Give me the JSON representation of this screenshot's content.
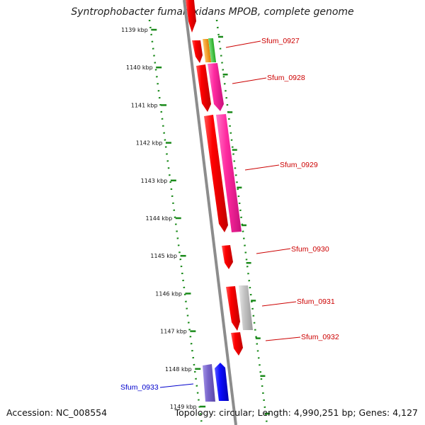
{
  "title": "Syntrophobacter fumaroxidans MPOB, complete genome",
  "footer": {
    "accession": "Accession: NC_008554",
    "summary": "Topology: circular; Length: 4,990,251 bp; Genes: 4,127"
  },
  "ruler": {
    "ticks": [
      "1139 kbp",
      "1140 kbp",
      "1141 kbp",
      "1142 kbp",
      "1143 kbp",
      "1144 kbp",
      "1145 kbp",
      "1146 kbp",
      "1147 kbp",
      "1148 kbp",
      "1149 kbp"
    ]
  },
  "genes": [
    {
      "id": "Sfum_0927",
      "color": "#cc0000"
    },
    {
      "id": "Sfum_0928",
      "color": "#cc0000"
    },
    {
      "id": "Sfum_0929",
      "color": "#cc0000"
    },
    {
      "id": "Sfum_0930",
      "color": "#cc0000"
    },
    {
      "id": "Sfum_0931",
      "color": "#cc0000"
    },
    {
      "id": "Sfum_0932",
      "color": "#cc0000"
    },
    {
      "id": "Sfum_0933",
      "color": "#0000cc"
    }
  ],
  "colors": {
    "backbone": "#8c8c8c",
    "ruler_dots": "#1a8a1a",
    "cds": "#ff0000",
    "protein_pink": "#ff2aa0",
    "orange": "#ff9900",
    "green": "#33cc33",
    "gray": "#bdbdbd",
    "blue": "#0a0aff",
    "purple": "#7a66cc"
  },
  "icons": [
    "cds-arrow",
    "protein-arrow"
  ]
}
